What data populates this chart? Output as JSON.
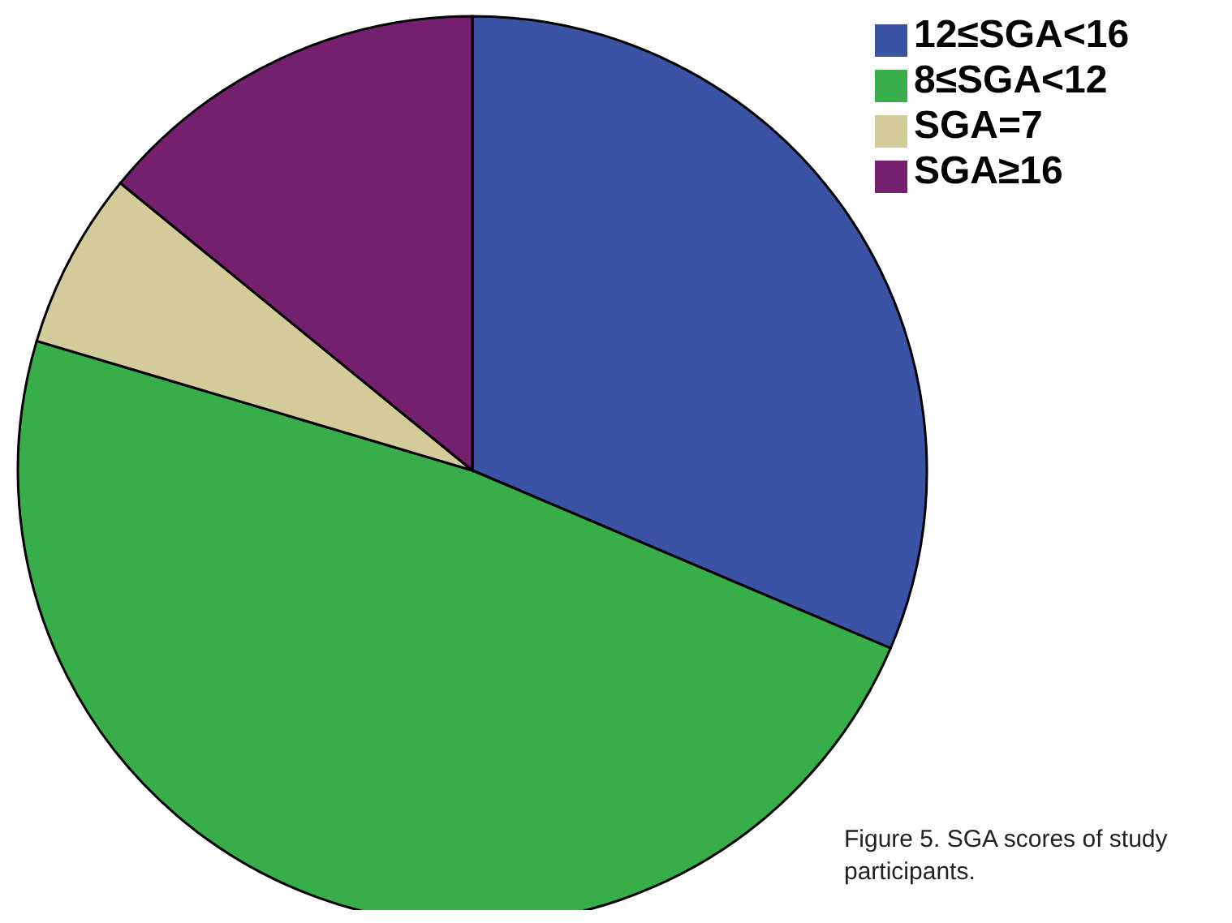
{
  "chart_data": {
    "type": "pie",
    "categories": [
      "12≤SGA<16",
      "8≤SGA<12",
      "SGA=7",
      "SGA≥16"
    ],
    "values": [
      31.4,
      48.2,
      6.3,
      14.1
    ],
    "colors": [
      "#3a53a4",
      "#38ae4a",
      "#d3cb9a",
      "#74206f"
    ],
    "legend": "top right",
    "annotations": [
      "Figure 5. SGA scores of study participants."
    ]
  }
}
